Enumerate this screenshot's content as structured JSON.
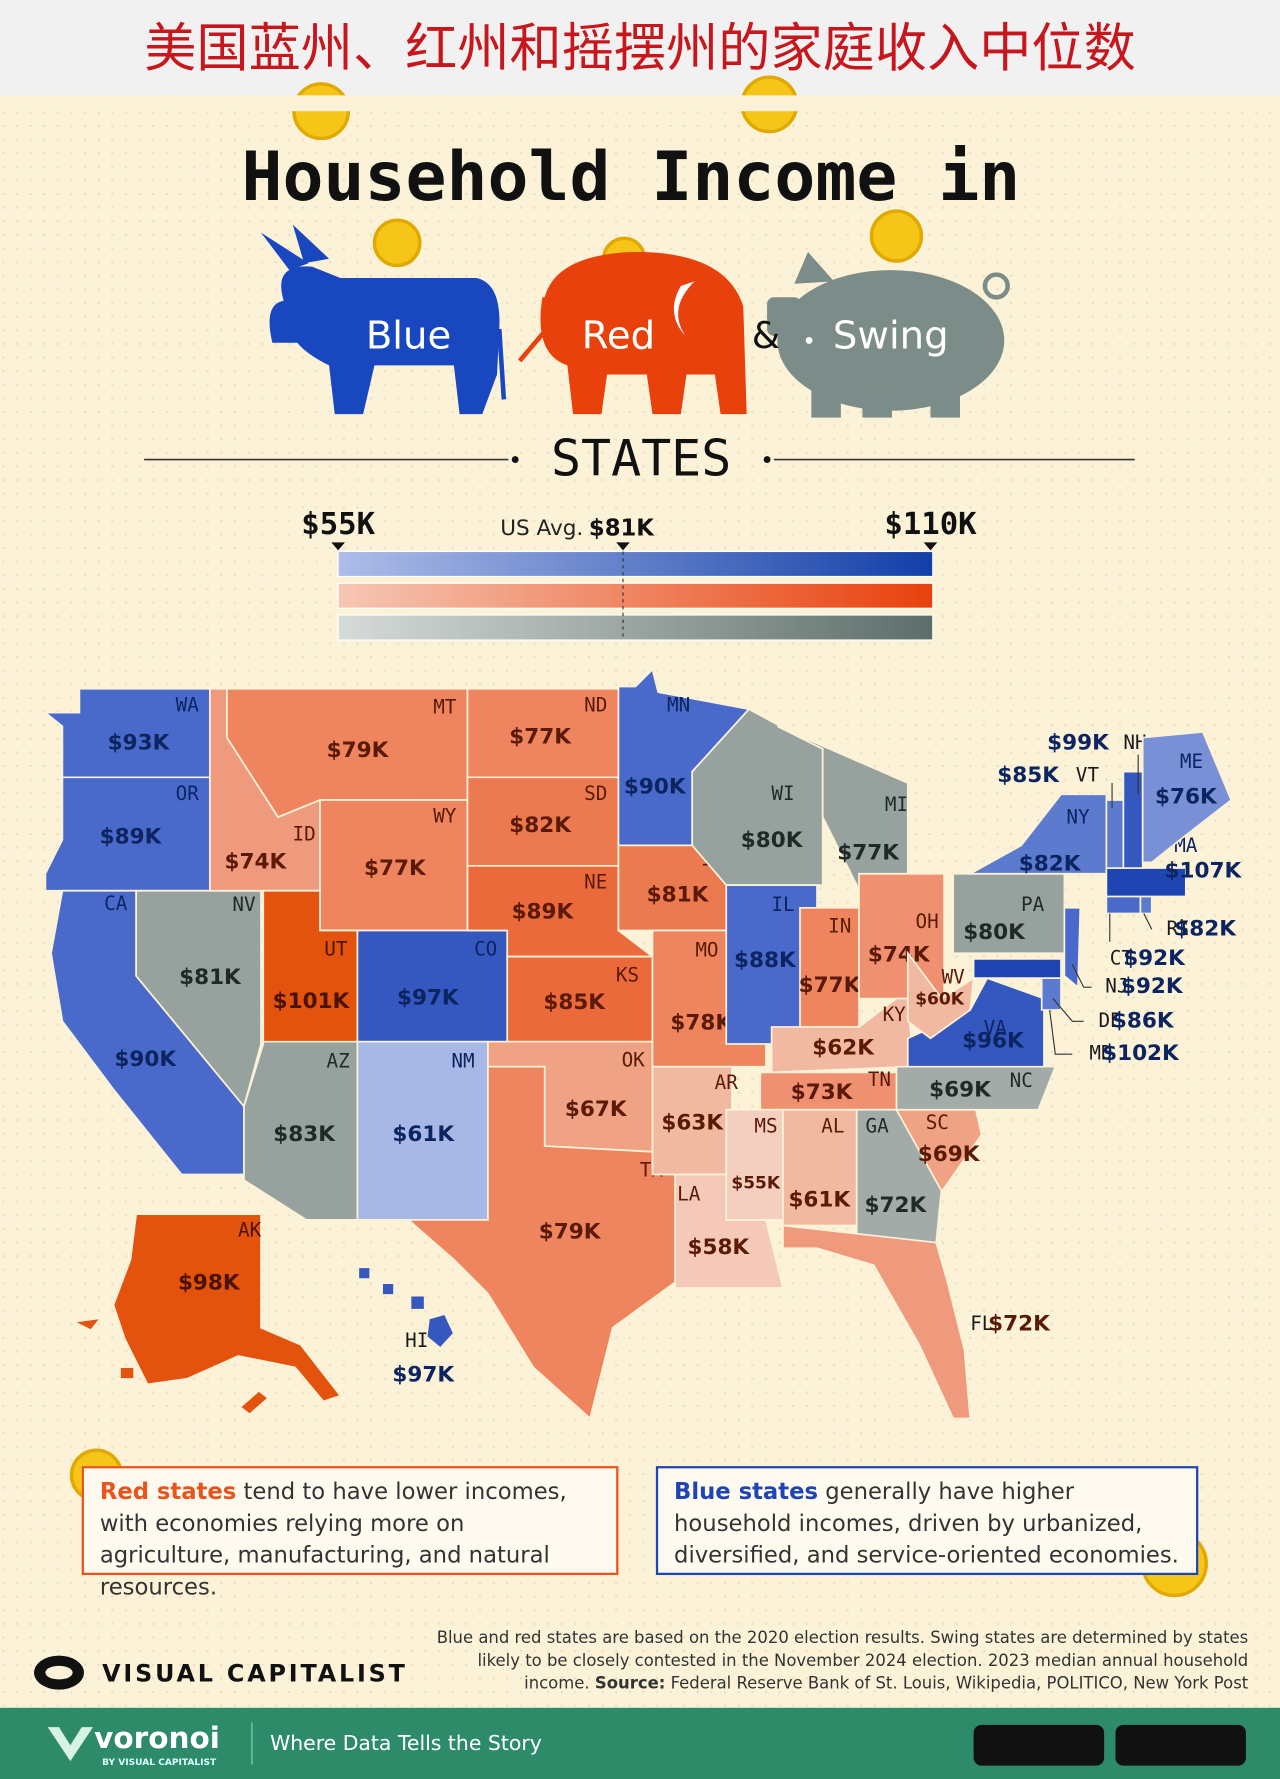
{
  "header": {
    "title": "美国蓝州、红州和摇摆州的家庭收入中位数"
  },
  "title": {
    "line1": "Household Income in",
    "blue": "Blue",
    "red": "Red",
    "amp": "&",
    "swing": "Swing",
    "states": "STATES"
  },
  "legend": {
    "min": "$55K",
    "avg_label": "US Avg.",
    "avg": "$81K",
    "max": "$110K",
    "bars": [
      [
        "#aebde9",
        "#123fa8"
      ],
      [
        "#f6c7b4",
        "#e8410c"
      ],
      [
        "#d6dbd8",
        "#5d6e6a"
      ]
    ]
  },
  "states": [
    {
      "abbr": "WA",
      "income": "$93K",
      "fill": "#4a6acb",
      "ink": "#0c2560"
    },
    {
      "abbr": "OR",
      "income": "$89K",
      "fill": "#4a6acb",
      "ink": "#0c2560"
    },
    {
      "abbr": "CA",
      "income": "$90K",
      "fill": "#4a6acb",
      "ink": "#0c2560"
    },
    {
      "abbr": "NV",
      "income": "$81K",
      "fill": "#97a19e",
      "ink": "#1f2a28"
    },
    {
      "abbr": "ID",
      "income": "$74K",
      "fill": "#ef9a7c",
      "ink": "#5a1a05"
    },
    {
      "abbr": "MT",
      "income": "$79K",
      "fill": "#ee855f",
      "ink": "#5a1a05"
    },
    {
      "abbr": "WY",
      "income": "$77K",
      "fill": "#ee855f",
      "ink": "#5a1a05"
    },
    {
      "abbr": "UT",
      "income": "$101K",
      "fill": "#e3530e",
      "ink": "#4a1200"
    },
    {
      "abbr": "CO",
      "income": "$97K",
      "fill": "#3557c0",
      "ink": "#0c2560"
    },
    {
      "abbr": "AZ",
      "income": "$83K",
      "fill": "#97a19e",
      "ink": "#1f2a28"
    },
    {
      "abbr": "NM",
      "income": "$61K",
      "fill": "#a7b8e6",
      "ink": "#0c2560"
    },
    {
      "abbr": "ND",
      "income": "$77K",
      "fill": "#ee855f",
      "ink": "#5a1a05"
    },
    {
      "abbr": "SD",
      "income": "$82K",
      "fill": "#ec7a50",
      "ink": "#5a1a05"
    },
    {
      "abbr": "NE",
      "income": "$89K",
      "fill": "#ea6a3c",
      "ink": "#5a1a05"
    },
    {
      "abbr": "KS",
      "income": "$85K",
      "fill": "#ea6a3c",
      "ink": "#5a1a05"
    },
    {
      "abbr": "OK",
      "income": "$67K",
      "fill": "#f0a284",
      "ink": "#5a1a05"
    },
    {
      "abbr": "TX",
      "income": "$79K",
      "fill": "#ee855f",
      "ink": "#5a1a05"
    },
    {
      "abbr": "MN",
      "income": "$90K",
      "fill": "#4a6acb",
      "ink": "#0c2560"
    },
    {
      "abbr": "IA",
      "income": "$81K",
      "fill": "#ec7a50",
      "ink": "#5a1a05"
    },
    {
      "abbr": "MO",
      "income": "$78K",
      "fill": "#ee855f",
      "ink": "#5a1a05"
    },
    {
      "abbr": "AR",
      "income": "$63K",
      "fill": "#f2b9a2",
      "ink": "#5a1a05"
    },
    {
      "abbr": "LA",
      "income": "$58K",
      "fill": "#f4c9b8",
      "ink": "#5a1a05"
    },
    {
      "abbr": "WI",
      "income": "$80K",
      "fill": "#97a19e",
      "ink": "#1f2a28"
    },
    {
      "abbr": "IL",
      "income": "$88K",
      "fill": "#4a6acb",
      "ink": "#0c2560"
    },
    {
      "abbr": "MI",
      "income": "$77K",
      "fill": "#97a19e",
      "ink": "#1f2a28"
    },
    {
      "abbr": "IN",
      "income": "$77K",
      "fill": "#ee855f",
      "ink": "#5a1a05"
    },
    {
      "abbr": "OH",
      "income": "$74K",
      "fill": "#ef9070",
      "ink": "#5a1a05"
    },
    {
      "abbr": "KY",
      "income": "$62K",
      "fill": "#f2b9a2",
      "ink": "#5a1a05"
    },
    {
      "abbr": "TN",
      "income": "$73K",
      "fill": "#ef9070",
      "ink": "#5a1a05"
    },
    {
      "abbr": "MS",
      "income": "$55K",
      "fill": "#f4cfc0",
      "ink": "#5a1a05"
    },
    {
      "abbr": "AL",
      "income": "$61K",
      "fill": "#f2b9a2",
      "ink": "#5a1a05"
    },
    {
      "abbr": "GA",
      "income": "$72K",
      "fill": "#a2aba8",
      "ink": "#1f2a28"
    },
    {
      "abbr": "FL",
      "income": "$72K",
      "fill": "#ef9a7c",
      "ink": "#5a1a05"
    },
    {
      "abbr": "SC",
      "income": "$69K",
      "fill": "#f0a284",
      "ink": "#5a1a05"
    },
    {
      "abbr": "NC",
      "income": "$69K",
      "fill": "#a2aba8",
      "ink": "#1f2a28"
    },
    {
      "abbr": "VA",
      "income": "$96K",
      "fill": "#3557c0",
      "ink": "#0c2560"
    },
    {
      "abbr": "WV",
      "income": "$60K",
      "fill": "#f2b9a2",
      "ink": "#5a1a05"
    },
    {
      "abbr": "PA",
      "income": "$80K",
      "fill": "#97a19e",
      "ink": "#1f2a28"
    },
    {
      "abbr": "NY",
      "income": "$82K",
      "fill": "#5c7bcf",
      "ink": "#0c2560"
    },
    {
      "abbr": "NJ",
      "income": "$92K",
      "fill": "#4a6acb",
      "ink": "#0c2560"
    },
    {
      "abbr": "DE",
      "income": "$86K",
      "fill": "#5c7bcf",
      "ink": "#0c2560"
    },
    {
      "abbr": "MD",
      "income": "$102K",
      "fill": "#1f45b3",
      "ink": "#0c2560"
    },
    {
      "abbr": "CT",
      "income": "$92K",
      "fill": "#4a6acb",
      "ink": "#0c2560"
    },
    {
      "abbr": "RI",
      "income": "$82K",
      "fill": "#5c7bcf",
      "ink": "#0c2560"
    },
    {
      "abbr": "MA",
      "income": "$107K",
      "fill": "#1f45b3",
      "ink": "#0c2560"
    },
    {
      "abbr": "VT",
      "income": "$85K",
      "fill": "#5c7bcf",
      "ink": "#0c2560"
    },
    {
      "abbr": "NH",
      "income": "$99K",
      "fill": "#3557c0",
      "ink": "#0c2560"
    },
    {
      "abbr": "ME",
      "income": "$76K",
      "fill": "#7a90d6",
      "ink": "#0c2560"
    },
    {
      "abbr": "AK",
      "income": "$98K",
      "fill": "#e3530e",
      "ink": "#4a1200"
    },
    {
      "abbr": "HI",
      "income": "$97K",
      "fill": "#3557c0",
      "ink": "#0c2560"
    }
  ],
  "notes": [
    {
      "lead": "Red states",
      "text": "tend to have lower incomes, with economies relying more on agriculture, manufacturing, and natural resources.",
      "color": "#e8541c"
    },
    {
      "lead": "Blue states",
      "text": "generally have higher household incomes, driven by urbanized, diversified, and service-oriented economies.",
      "color": "#1f45b3"
    }
  ],
  "footnote": {
    "text": "Blue and red states are based on the 2020 election results. Swing states are determined by states likely to be closely contested in the November 2024 election. 2023 median annual household income.",
    "source_label": "Source:",
    "source": "Federal Reserve Bank of St. Louis, Wikipedia, POLITICO, New York Post"
  },
  "brand": {
    "logo": "VISUAL CAPITALIST",
    "voronoi": "voronoi",
    "by": "BY VISUAL CAPITALIST",
    "tagline": "Where Data Tells the Story"
  }
}
